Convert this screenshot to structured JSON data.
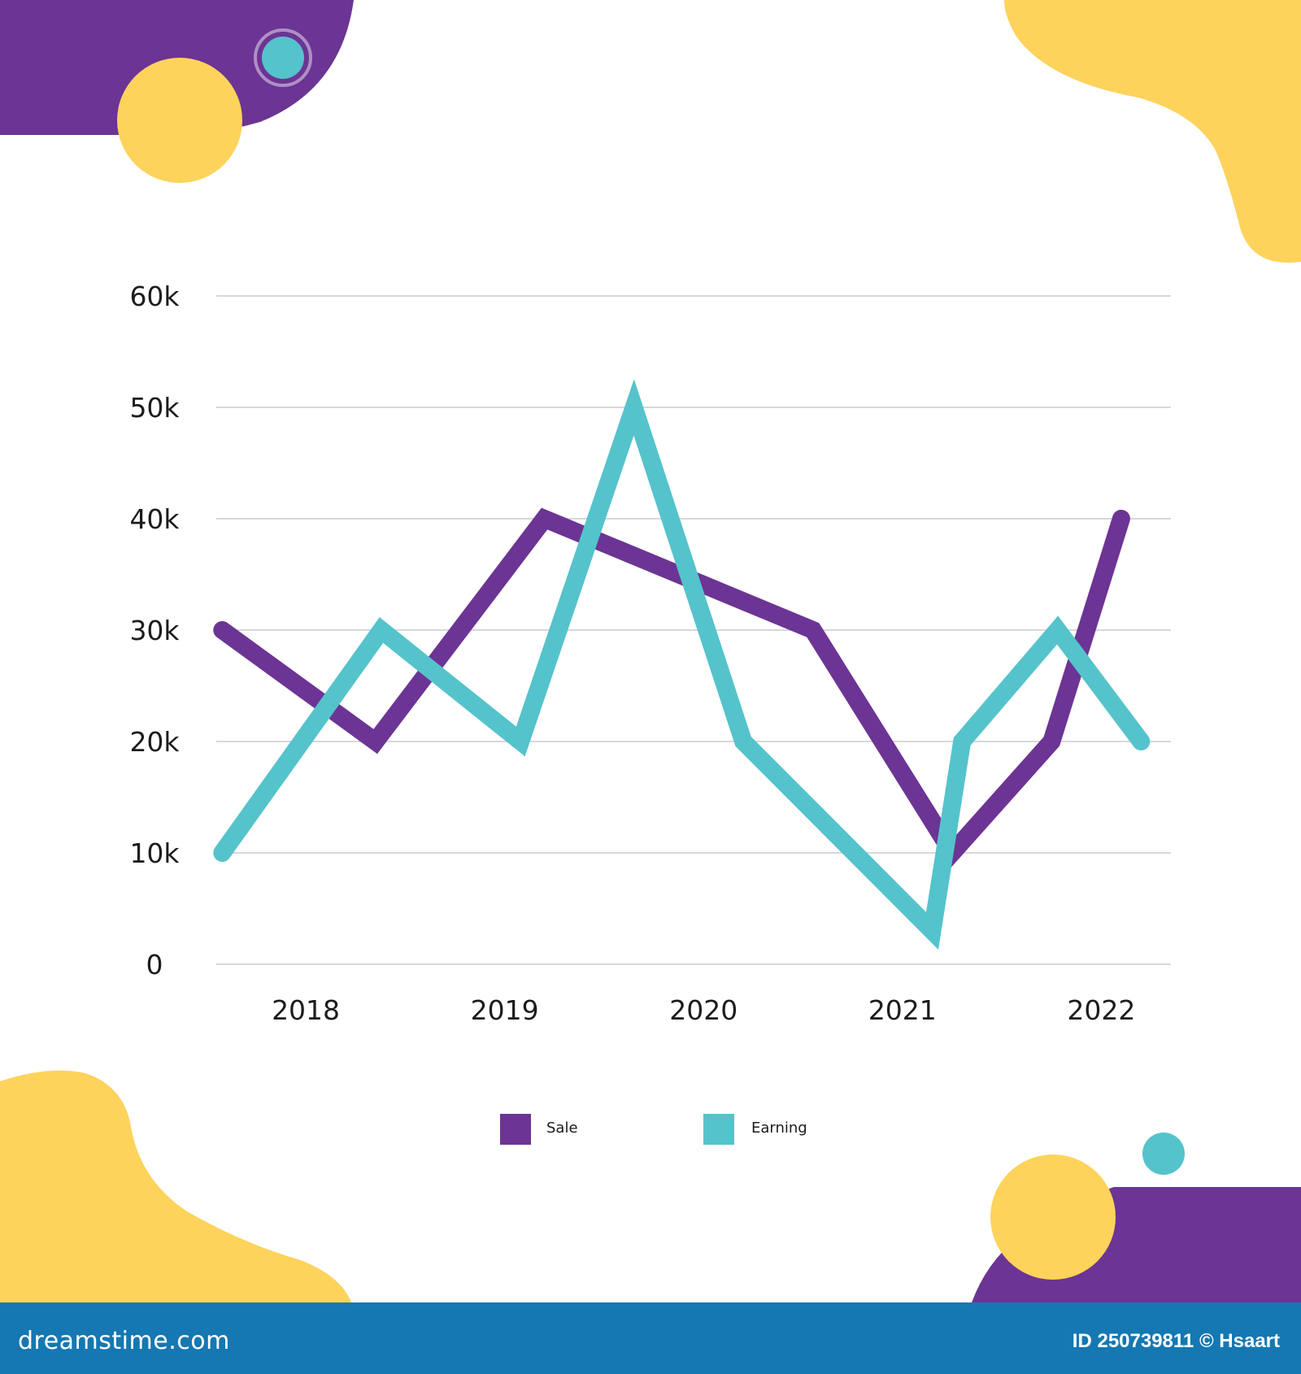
{
  "colors": {
    "purple": "#6c3494",
    "teal": "#55c3cb",
    "yellow": "#fdd35c",
    "grid": "#d7d7dc",
    "footer": "#1578b2",
    "text": "#1c1c1c"
  },
  "chart_data": {
    "type": "line",
    "title": "",
    "xlabel": "",
    "ylabel": "",
    "ylim": [
      0,
      60000
    ],
    "y_ticks": [
      {
        "value": 0,
        "label": "0"
      },
      {
        "value": 10000,
        "label": "10k"
      },
      {
        "value": 20000,
        "label": "20k"
      },
      {
        "value": 30000,
        "label": "30k"
      },
      {
        "value": 40000,
        "label": "40k"
      },
      {
        "value": 50000,
        "label": "50k"
      },
      {
        "value": 60000,
        "label": "60k"
      }
    ],
    "x_range": [
      2017.55,
      2022.35
    ],
    "x_ticks": [
      {
        "value": 2018,
        "label": "2018"
      },
      {
        "value": 2019,
        "label": "2019"
      },
      {
        "value": 2020,
        "label": "2020"
      },
      {
        "value": 2021,
        "label": "2021"
      },
      {
        "value": 2022,
        "label": "2022"
      }
    ],
    "grid": true,
    "legend_position": "bottom",
    "series": [
      {
        "name": "Sale",
        "color": "#6c3494",
        "points": [
          {
            "x": 2017.58,
            "y": 30000
          },
          {
            "x": 2018.35,
            "y": 20000
          },
          {
            "x": 2019.2,
            "y": 40000
          },
          {
            "x": 2020.55,
            "y": 30000
          },
          {
            "x": 2021.25,
            "y": 10000
          },
          {
            "x": 2021.75,
            "y": 20000
          },
          {
            "x": 2022.1,
            "y": 40000
          }
        ]
      },
      {
        "name": "Earning",
        "color": "#55c3cb",
        "points": [
          {
            "x": 2017.58,
            "y": 10000
          },
          {
            "x": 2018.38,
            "y": 30000
          },
          {
            "x": 2019.08,
            "y": 20000
          },
          {
            "x": 2019.65,
            "y": 50000
          },
          {
            "x": 2020.2,
            "y": 20000
          },
          {
            "x": 2021.15,
            "y": 3000
          },
          {
            "x": 2021.3,
            "y": 20000
          },
          {
            "x": 2021.78,
            "y": 30000
          },
          {
            "x": 2022.2,
            "y": 20000
          }
        ]
      }
    ]
  },
  "footer": {
    "site": "dreamstime.com",
    "id_text": "ID 250739811 © Hsaart"
  }
}
